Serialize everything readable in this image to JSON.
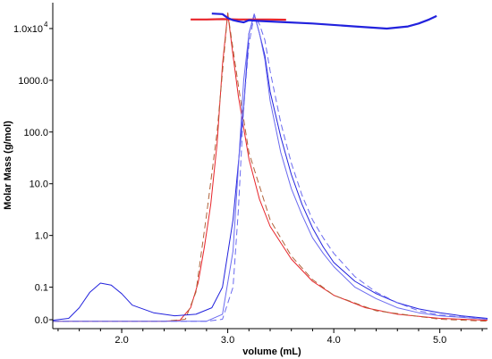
{
  "chart_data": {
    "type": "line",
    "xlabel": "volume (mL)",
    "ylabel": "Molar Mass (g/mol)",
    "xlim": [
      1.35,
      5.45
    ],
    "y_scale": "log",
    "ylim": [
      0.0158,
      31623
    ],
    "x_ticks": [
      2.0,
      3.0,
      4.0,
      5.0
    ],
    "x_tick_labels": [
      "2.0",
      "3.0",
      "4.0",
      "5.0"
    ],
    "y_ticks": [
      0.1,
      1.0,
      10,
      100,
      1000,
      10000
    ],
    "y_tick_labels": [
      "0.1",
      "1.0",
      "10.0",
      "100.0",
      "1000.0",
      "1.0x10"
    ],
    "y_tick_exponent": "4",
    "y_bottom_label": "0.0",
    "grid": false,
    "legend": "none",
    "colors": {
      "red": "#e8242a",
      "blue": "#2222dd",
      "blue_fit": "#6a6af0",
      "red_fit": "#b0633a",
      "pink": "#f06a8a"
    },
    "series": [
      {
        "color": "red",
        "style": "solid",
        "x": [
          1.35,
          2.4,
          2.55,
          2.65,
          2.72,
          2.78,
          2.84,
          2.9,
          2.95,
          3.0,
          3.05,
          3.1,
          3.15,
          3.2,
          3.3,
          3.4,
          3.6,
          3.8,
          4.0,
          4.3,
          4.6,
          5.0,
          5.45
        ],
        "y": [
          0.022,
          0.022,
          0.023,
          0.04,
          0.12,
          0.6,
          4.0,
          60,
          2000,
          20000,
          3000,
          500,
          120,
          30,
          5,
          1.5,
          0.35,
          0.13,
          0.07,
          0.04,
          0.03,
          0.025,
          0.023
        ]
      },
      {
        "color": "red_fit",
        "style": "dashed",
        "x": [
          1.35,
          2.4,
          2.6,
          2.7,
          2.8,
          2.9,
          3.0,
          3.1,
          3.2,
          3.4,
          3.6,
          3.8,
          4.0,
          4.4,
          5.0,
          5.45
        ],
        "y": [
          0.022,
          0.022,
          0.024,
          0.08,
          2.5,
          100,
          20000,
          800,
          40,
          2.0,
          0.4,
          0.14,
          0.07,
          0.035,
          0.024,
          0.022
        ]
      },
      {
        "color": "blue",
        "style": "solid",
        "x": [
          1.35,
          1.5,
          1.6,
          1.7,
          1.8,
          1.9,
          2.0,
          2.1,
          2.3,
          2.5,
          2.7,
          2.85,
          2.95,
          3.05,
          3.15,
          3.2,
          3.25,
          3.3,
          3.35,
          3.4,
          3.5,
          3.6,
          3.7,
          3.8,
          3.9,
          4.0,
          4.2,
          4.4,
          4.6,
          4.8,
          5.0,
          5.2,
          5.45
        ],
        "y": [
          0.023,
          0.025,
          0.04,
          0.08,
          0.12,
          0.11,
          0.075,
          0.045,
          0.032,
          0.028,
          0.03,
          0.04,
          0.1,
          2.0,
          300,
          8000,
          19000,
          8000,
          3000,
          600,
          80,
          15,
          4.0,
          1.4,
          0.6,
          0.3,
          0.13,
          0.075,
          0.05,
          0.038,
          0.032,
          0.028,
          0.025
        ]
      },
      {
        "color": "blue_fit",
        "style": "solid",
        "x": [
          1.35,
          2.8,
          2.95,
          3.05,
          3.1,
          3.15,
          3.2,
          3.25,
          3.3,
          3.35,
          3.4,
          3.5,
          3.6,
          3.7,
          3.8,
          3.9,
          4.0,
          4.2,
          4.4,
          4.6,
          4.8,
          5.0,
          5.45
        ],
        "y": [
          0.022,
          0.022,
          0.03,
          0.5,
          20,
          1000,
          8000,
          19000,
          8000,
          2500,
          400,
          40,
          8,
          2.5,
          0.9,
          0.45,
          0.25,
          0.1,
          0.06,
          0.04,
          0.032,
          0.028,
          0.024
        ]
      },
      {
        "color": "blue_fit",
        "style": "dashed",
        "x": [
          1.35,
          2.8,
          2.95,
          3.05,
          3.1,
          3.15,
          3.2,
          3.25,
          3.3,
          3.35,
          3.4,
          3.5,
          3.6,
          3.7,
          3.8,
          3.9,
          4.0,
          4.2,
          4.4,
          4.6,
          4.8,
          5.0,
          5.45
        ],
        "y": [
          0.022,
          0.022,
          0.024,
          0.1,
          3.0,
          300,
          5000,
          18000,
          12000,
          6000,
          1500,
          150,
          25,
          6.0,
          2.0,
          0.9,
          0.45,
          0.16,
          0.08,
          0.05,
          0.035,
          0.029,
          0.024
        ]
      },
      {
        "color": "red",
        "style": "solid",
        "width": 2.2,
        "x": [
          2.65,
          2.8,
          2.95,
          3.1,
          3.25,
          3.4,
          3.55
        ],
        "y": [
          15000,
          15000,
          15200,
          15000,
          15000,
          15000,
          14800
        ]
      },
      {
        "color": "blue",
        "style": "solid",
        "width": 2.2,
        "x": [
          2.85,
          2.95,
          3.0,
          3.05,
          3.1,
          3.15,
          3.2,
          3.3,
          3.5,
          3.8,
          4.2,
          4.5,
          4.7,
          4.8,
          4.9,
          4.97
        ],
        "y": [
          19500,
          19000,
          16000,
          14500,
          13800,
          13200,
          14500,
          14000,
          13400,
          12500,
          11000,
          10000,
          11000,
          12500,
          15000,
          17500
        ]
      }
    ]
  }
}
